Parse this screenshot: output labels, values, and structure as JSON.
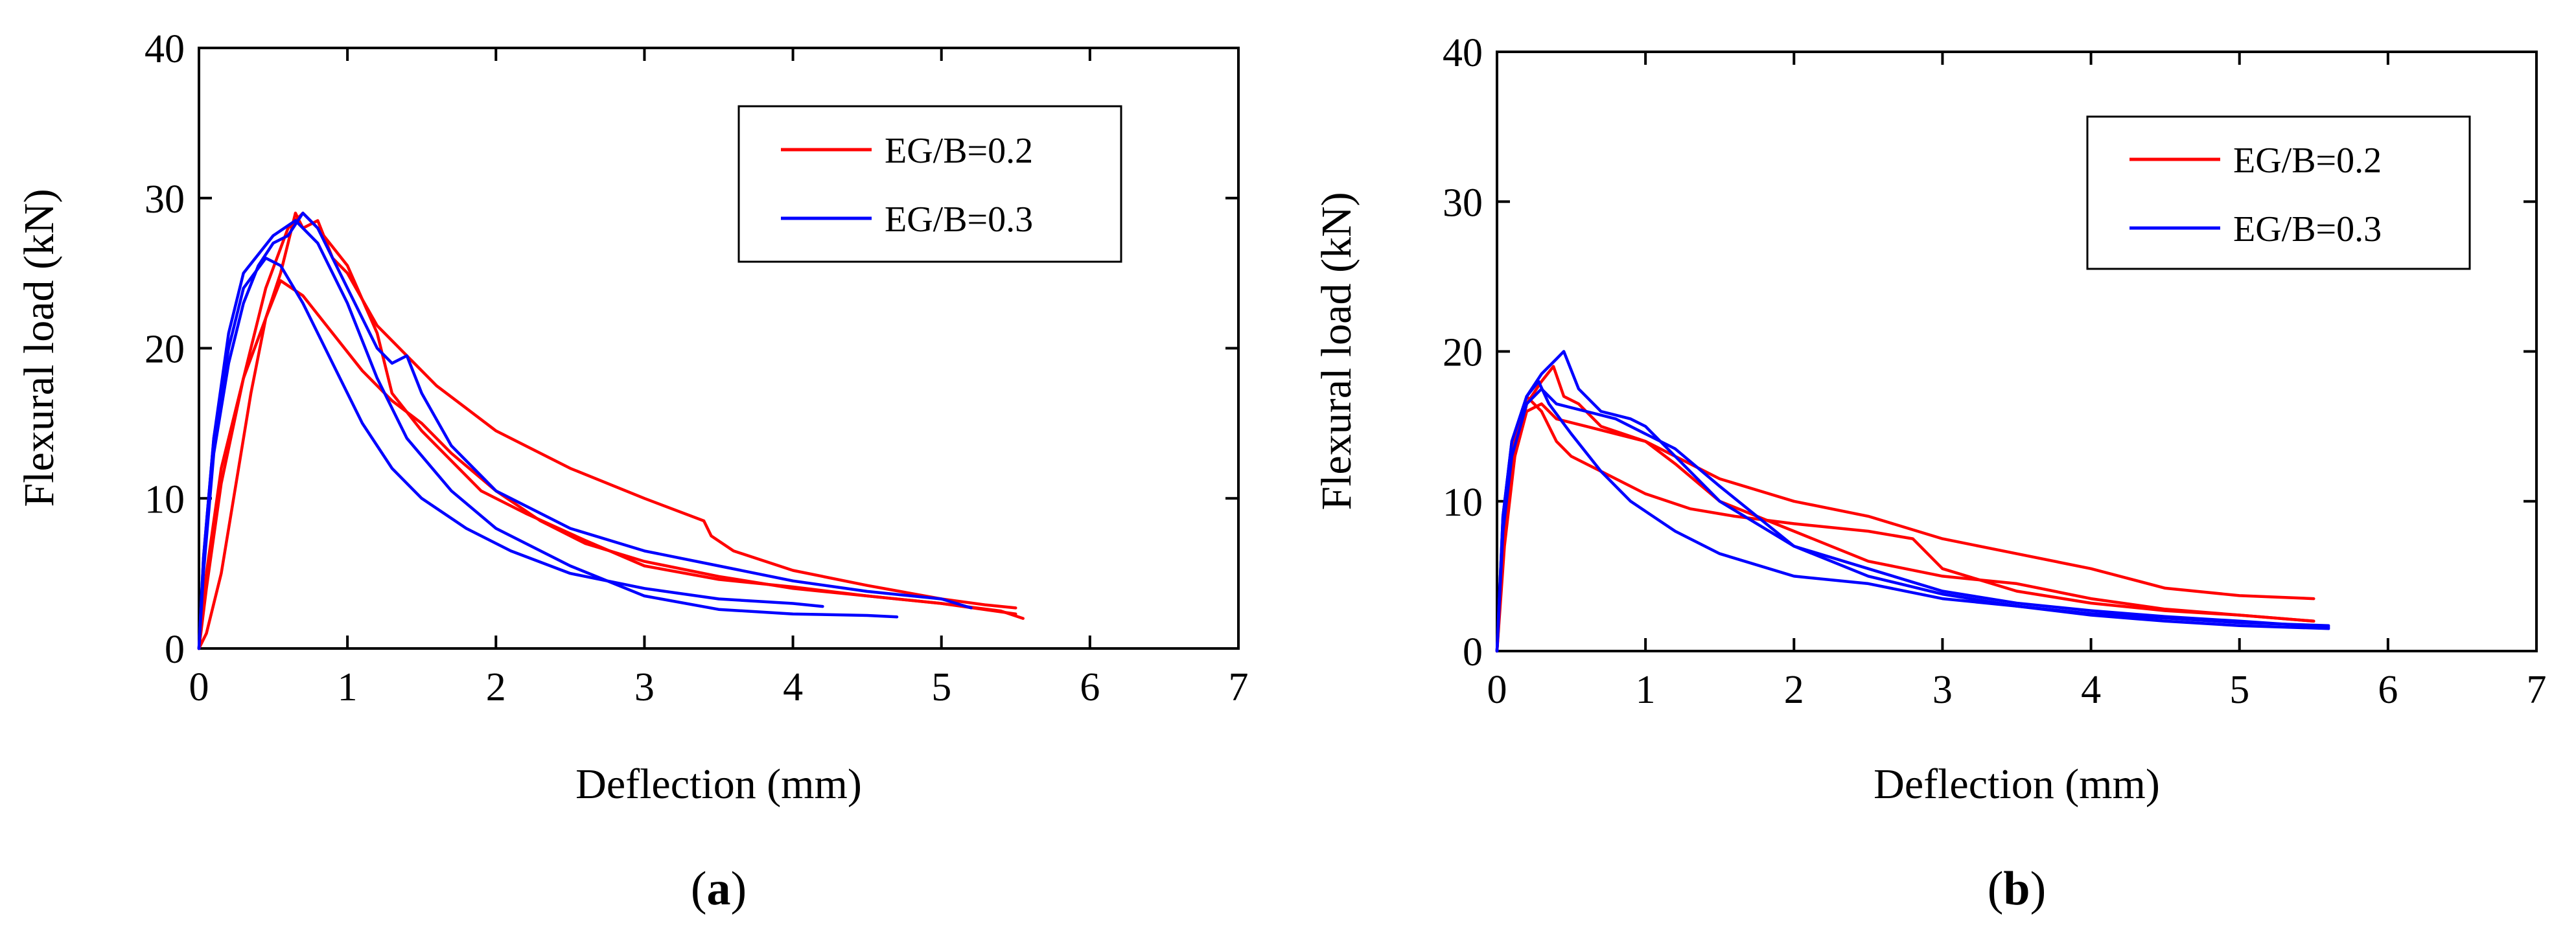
{
  "chart_data": [
    {
      "type": "line",
      "panel_label": "a",
      "xlabel": "Deflection (mm)",
      "ylabel": "Flexural load (kN)",
      "xlim": [
        0,
        7
      ],
      "ylim": [
        0,
        40
      ],
      "xticks": [
        "0",
        "1",
        "2",
        "3",
        "4",
        "5",
        "6",
        "7"
      ],
      "yticks": [
        "0",
        "10",
        "20",
        "30",
        "40"
      ],
      "legend_position": "top-right",
      "legend": [
        {
          "label": "EG/B=0.2",
          "color": "#ff0000"
        },
        {
          "label": "EG/B=0.3",
          "color": "#0000ff"
        }
      ],
      "series": [
        {
          "name": "EG/B=0.2",
          "color": "#ff0000",
          "points": [
            [
              0,
              0
            ],
            [
              0.05,
              1
            ],
            [
              0.15,
              5
            ],
            [
              0.25,
              11
            ],
            [
              0.35,
              17
            ],
            [
              0.45,
              22
            ],
            [
              0.55,
              25
            ],
            [
              0.6,
              27
            ],
            [
              0.65,
              29
            ],
            [
              0.7,
              28
            ],
            [
              0.8,
              28.5
            ],
            [
              0.9,
              26
            ],
            [
              1.0,
              25
            ],
            [
              1.2,
              21.5
            ],
            [
              1.4,
              19.5
            ],
            [
              1.6,
              17.5
            ],
            [
              1.8,
              16
            ],
            [
              2.0,
              14.5
            ],
            [
              2.5,
              12
            ],
            [
              3.0,
              10
            ],
            [
              3.4,
              8.5
            ],
            [
              3.45,
              7.5
            ],
            [
              3.6,
              6.5
            ],
            [
              4.0,
              5.2
            ],
            [
              4.5,
              4.2
            ],
            [
              5.0,
              3.3
            ],
            [
              5.3,
              2.9
            ],
            [
              5.5,
              2.7
            ]
          ]
        },
        {
          "name": "EG/B=0.2",
          "color": "#ff0000",
          "points": [
            [
              0,
              0
            ],
            [
              0.05,
              5
            ],
            [
              0.15,
              12
            ],
            [
              0.3,
              18
            ],
            [
              0.45,
              22
            ],
            [
              0.55,
              24.5
            ],
            [
              0.7,
              23.5
            ],
            [
              0.9,
              21
            ],
            [
              1.1,
              18.5
            ],
            [
              1.3,
              16.5
            ],
            [
              1.5,
              15
            ],
            [
              1.7,
              13
            ],
            [
              2.0,
              10.5
            ],
            [
              2.3,
              8.5
            ],
            [
              2.6,
              7
            ],
            [
              3.0,
              5.8
            ],
            [
              3.5,
              4.8
            ],
            [
              4.0,
              4.0
            ],
            [
              4.5,
              3.5
            ],
            [
              5.0,
              3.0
            ],
            [
              5.5,
              2.3
            ]
          ]
        },
        {
          "name": "EG/B=0.2",
          "color": "#ff0000",
          "points": [
            [
              0,
              0
            ],
            [
              0.05,
              4
            ],
            [
              0.15,
              11
            ],
            [
              0.3,
              18
            ],
            [
              0.45,
              24
            ],
            [
              0.6,
              28
            ],
            [
              0.7,
              29
            ],
            [
              0.8,
              28
            ],
            [
              1.0,
              25.5
            ],
            [
              1.2,
              21
            ],
            [
              1.3,
              17
            ],
            [
              1.5,
              14.5
            ],
            [
              1.7,
              12.5
            ],
            [
              1.9,
              10.5
            ],
            [
              2.2,
              9
            ],
            [
              2.6,
              7.2
            ],
            [
              3.0,
              5.5
            ],
            [
              3.5,
              4.6
            ],
            [
              4.0,
              4.1
            ],
            [
              4.5,
              3.5
            ],
            [
              5.0,
              3.0
            ],
            [
              5.4,
              2.5
            ],
            [
              5.55,
              2.0
            ]
          ]
        },
        {
          "name": "EG/B=0.3",
          "color": "#0000ff",
          "points": [
            [
              0,
              0
            ],
            [
              0.03,
              5
            ],
            [
              0.1,
              13
            ],
            [
              0.2,
              19
            ],
            [
              0.3,
              23
            ],
            [
              0.4,
              25.5
            ],
            [
              0.5,
              27
            ],
            [
              0.6,
              27.5
            ],
            [
              0.7,
              29
            ],
            [
              0.8,
              28
            ],
            [
              0.9,
              26
            ],
            [
              1.0,
              24
            ],
            [
              1.2,
              20
            ],
            [
              1.3,
              19
            ],
            [
              1.4,
              19.5
            ],
            [
              1.5,
              17
            ],
            [
              1.7,
              13.5
            ],
            [
              2.0,
              10.5
            ],
            [
              2.5,
              8
            ],
            [
              3.0,
              6.5
            ],
            [
              3.5,
              5.5
            ],
            [
              4.0,
              4.5
            ],
            [
              4.5,
              3.8
            ],
            [
              5.0,
              3.3
            ],
            [
              5.2,
              2.7
            ]
          ]
        },
        {
          "name": "EG/B=0.3",
          "color": "#0000ff",
          "points": [
            [
              0,
              0
            ],
            [
              0.03,
              6
            ],
            [
              0.1,
              14
            ],
            [
              0.2,
              20
            ],
            [
              0.3,
              24
            ],
            [
              0.45,
              26
            ],
            [
              0.55,
              25.5
            ],
            [
              0.7,
              23
            ],
            [
              0.9,
              19
            ],
            [
              1.1,
              15
            ],
            [
              1.3,
              12
            ],
            [
              1.5,
              10
            ],
            [
              1.8,
              8
            ],
            [
              2.1,
              6.5
            ],
            [
              2.5,
              5
            ],
            [
              3.0,
              4
            ],
            [
              3.5,
              3.3
            ],
            [
              4.0,
              3.0
            ],
            [
              4.2,
              2.8
            ]
          ]
        },
        {
          "name": "EG/B=0.3",
          "color": "#0000ff",
          "points": [
            [
              0,
              0
            ],
            [
              0.03,
              6
            ],
            [
              0.1,
              14
            ],
            [
              0.2,
              21
            ],
            [
              0.3,
              25
            ],
            [
              0.5,
              27.5
            ],
            [
              0.65,
              28.5
            ],
            [
              0.8,
              27
            ],
            [
              1.0,
              23
            ],
            [
              1.2,
              18
            ],
            [
              1.4,
              14
            ],
            [
              1.7,
              10.5
            ],
            [
              2.0,
              8
            ],
            [
              2.5,
              5.5
            ],
            [
              3.0,
              3.5
            ],
            [
              3.5,
              2.6
            ],
            [
              4.0,
              2.3
            ],
            [
              4.5,
              2.2
            ],
            [
              4.7,
              2.1
            ]
          ]
        }
      ]
    },
    {
      "type": "line",
      "panel_label": "b",
      "xlabel": "Deflection (mm)",
      "ylabel": "Flexural load (kN)",
      "xlim": [
        0,
        7
      ],
      "ylim": [
        0,
        40
      ],
      "xticks": [
        "0",
        "1",
        "2",
        "3",
        "4",
        "5",
        "6",
        "7"
      ],
      "yticks": [
        "0",
        "10",
        "20",
        "30",
        "40"
      ],
      "legend_position": "top-right",
      "legend": [
        {
          "label": "EG/B=0.2",
          "color": "#ff0000"
        },
        {
          "label": "EG/B=0.3",
          "color": "#0000ff"
        }
      ],
      "series": [
        {
          "name": "EG/B=0.2",
          "color": "#ff0000",
          "points": [
            [
              0,
              0
            ],
            [
              0.05,
              7
            ],
            [
              0.12,
              13
            ],
            [
              0.2,
              16.5
            ],
            [
              0.3,
              18
            ],
            [
              0.38,
              19
            ],
            [
              0.45,
              17
            ],
            [
              0.55,
              16.5
            ],
            [
              0.7,
              15
            ],
            [
              1.0,
              14
            ],
            [
              1.2,
              13
            ],
            [
              1.5,
              11.5
            ],
            [
              2.0,
              10
            ],
            [
              2.5,
              9
            ],
            [
              3.0,
              7.5
            ],
            [
              3.5,
              6.5
            ],
            [
              4.0,
              5.5
            ],
            [
              4.5,
              4.2
            ],
            [
              5.0,
              3.7
            ],
            [
              5.5,
              3.5
            ]
          ]
        },
        {
          "name": "EG/B=0.2",
          "color": "#ff0000",
          "points": [
            [
              0,
              0
            ],
            [
              0.05,
              9
            ],
            [
              0.12,
              14
            ],
            [
              0.2,
              17
            ],
            [
              0.3,
              16
            ],
            [
              0.4,
              14
            ],
            [
              0.5,
              13
            ],
            [
              0.7,
              12
            ],
            [
              1.0,
              10.5
            ],
            [
              1.3,
              9.5
            ],
            [
              1.6,
              9
            ],
            [
              2.0,
              8.5
            ],
            [
              2.5,
              8
            ],
            [
              2.8,
              7.5
            ],
            [
              3.0,
              5.5
            ],
            [
              3.5,
              4
            ],
            [
              4.0,
              3.2
            ],
            [
              4.5,
              2.7
            ],
            [
              5.0,
              2.4
            ],
            [
              5.5,
              2.0
            ]
          ]
        },
        {
          "name": "EG/B=0.2",
          "color": "#ff0000",
          "points": [
            [
              0,
              0
            ],
            [
              0.05,
              8
            ],
            [
              0.12,
              13
            ],
            [
              0.2,
              16
            ],
            [
              0.3,
              16.5
            ],
            [
              0.4,
              15.5
            ],
            [
              0.6,
              15
            ],
            [
              0.8,
              14.5
            ],
            [
              1.0,
              14
            ],
            [
              1.2,
              12.5
            ],
            [
              1.5,
              10
            ],
            [
              2.0,
              8
            ],
            [
              2.5,
              6
            ],
            [
              3.0,
              5
            ],
            [
              3.5,
              4.5
            ],
            [
              4.0,
              3.5
            ],
            [
              4.5,
              2.8
            ],
            [
              5.0,
              2.4
            ],
            [
              5.5,
              2.0
            ]
          ]
        },
        {
          "name": "EG/B=0.3",
          "color": "#0000ff",
          "points": [
            [
              0,
              0
            ],
            [
              0.04,
              9
            ],
            [
              0.1,
              14
            ],
            [
              0.2,
              17
            ],
            [
              0.3,
              18.5
            ],
            [
              0.4,
              19.5
            ],
            [
              0.45,
              20
            ],
            [
              0.55,
              17.5
            ],
            [
              0.7,
              16
            ],
            [
              0.9,
              15.5
            ],
            [
              1.0,
              15
            ],
            [
              1.2,
              13
            ],
            [
              1.5,
              10
            ],
            [
              2.0,
              7
            ],
            [
              2.5,
              5.5
            ],
            [
              3.0,
              4
            ],
            [
              3.5,
              3.2
            ],
            [
              4.0,
              2.7
            ],
            [
              4.5,
              2.3
            ],
            [
              5.0,
              2.0
            ],
            [
              5.6,
              1.6
            ]
          ]
        },
        {
          "name": "EG/B=0.3",
          "color": "#0000ff",
          "points": [
            [
              0,
              0
            ],
            [
              0.04,
              9
            ],
            [
              0.1,
              14
            ],
            [
              0.2,
              17
            ],
            [
              0.28,
              18
            ],
            [
              0.35,
              16.5
            ],
            [
              0.5,
              14.5
            ],
            [
              0.7,
              12
            ],
            [
              0.9,
              10
            ],
            [
              1.2,
              8
            ],
            [
              1.5,
              6.5
            ],
            [
              2.0,
              5
            ],
            [
              2.5,
              4.5
            ],
            [
              3.0,
              3.5
            ],
            [
              3.5,
              3.0
            ],
            [
              4.0,
              2.4
            ],
            [
              4.5,
              2.0
            ],
            [
              5.0,
              1.7
            ],
            [
              5.6,
              1.5
            ]
          ]
        },
        {
          "name": "EG/B=0.3",
          "color": "#0000ff",
          "points": [
            [
              0,
              0
            ],
            [
              0.04,
              8
            ],
            [
              0.1,
              13
            ],
            [
              0.2,
              16.5
            ],
            [
              0.3,
              17.5
            ],
            [
              0.4,
              16.5
            ],
            [
              0.6,
              16
            ],
            [
              0.8,
              15.5
            ],
            [
              1.0,
              14.5
            ],
            [
              1.2,
              13.5
            ],
            [
              1.5,
              11
            ],
            [
              2.0,
              7
            ],
            [
              2.5,
              5
            ],
            [
              3.0,
              3.8
            ],
            [
              3.5,
              3.0
            ],
            [
              4.0,
              2.5
            ],
            [
              4.5,
              2.2
            ],
            [
              5.0,
              1.9
            ],
            [
              5.6,
              1.7
            ]
          ]
        }
      ]
    }
  ]
}
